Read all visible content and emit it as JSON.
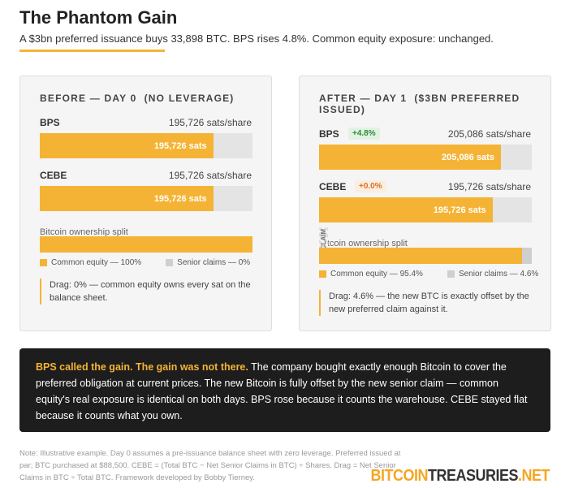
{
  "title": "The Phantom Gain",
  "subtitle": "A $3bn preferred issuance buys 33,898 BTC. BPS rises 4.8%. Common equity exposure: unchanged.",
  "xlim": [
    0,
    240000
  ],
  "panels": [
    {
      "heading": "BEFORE — DAY 0  (NO LEVERAGE)",
      "metrics": [
        {
          "label": "BPS",
          "value_text": "195,726 sats/share",
          "bar_label": "195,726 sats",
          "value": 195726
        },
        {
          "label": "CEBE",
          "value_text": "195,726 sats/share",
          "bar_label": "195,726 sats",
          "value": 195726
        }
      ],
      "split": {
        "label": "Bitcoin ownership split",
        "common": 100,
        "senior": 0,
        "common_legend": "Common equity — 100%",
        "senior_legend": "Senior claims — 0%"
      },
      "note": "Drag: 0% — common equity owns every sat on the balance sheet."
    },
    {
      "heading": "AFTER — DAY 1  ($3BN PREFERRED ISSUED)",
      "metrics": [
        {
          "label": "BPS",
          "badge": "+4.8%",
          "value_text": "205,086 sats/share",
          "bar_label": "205,086 sats",
          "value": 205086
        },
        {
          "label": "CEBE",
          "badge": "+0.0%",
          "value_text": "195,726 sats/share",
          "bar_label": "195,726 sats",
          "value": 195726
        }
      ],
      "split": {
        "label": "Bitcoin ownership split",
        "tag": "CLAIM",
        "common": 95.4,
        "senior": 4.6,
        "common_legend": "Common equity — 95.4%",
        "senior_legend": "Senior claims — 4.6%"
      },
      "note": "Drag: 4.6% — the new BTC is exactly offset by the new preferred claim against it."
    }
  ],
  "callout": {
    "lead": "BPS called the gain. The gain was not there.",
    "body": " The company bought exactly enough Bitcoin to cover the preferred obligation at current prices. The new Bitcoin is fully offset by the new senior claim — common equity's real exposure is identical on both days. BPS rose because it counts the warehouse. CEBE stayed flat because it counts what you own."
  },
  "footnote": "Note: Illustrative example. Day 0 assumes a pre-issuance balance sheet with zero leverage. Preferred issued at par; BTC purchased at $88,500. CEBE = (Total BTC − Net Senior Claims in BTC) ÷ Shares. Drag = Net Senior Claims in BTC ÷ Total BTC. Framework developed by Bobby Tierney.",
  "logo": {
    "part1": "BITCOIN",
    "part2": "TREASURIES",
    "part3": ".NET"
  }
}
